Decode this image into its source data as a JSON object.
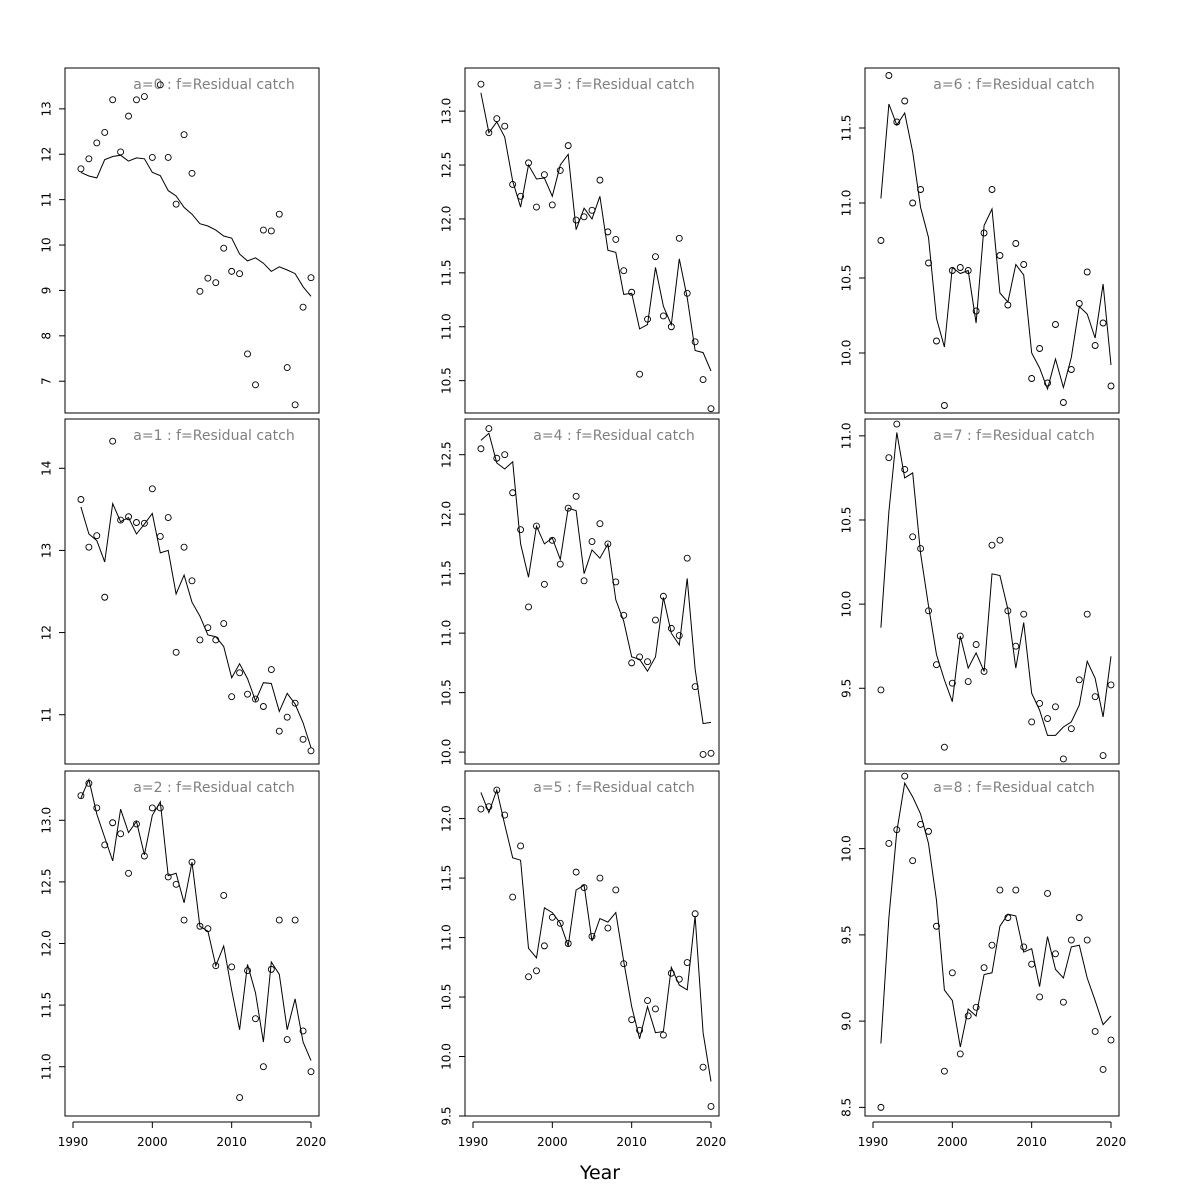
{
  "figure": {
    "xlabel": "Year"
  },
  "chart_data": [
    {
      "type": "scatter",
      "title": "a=0  :  f=Residual catch",
      "x": [
        1991,
        1992,
        1993,
        1994,
        1995,
        1996,
        1997,
        1998,
        1999,
        2000,
        2001,
        2002,
        2003,
        2004,
        2005,
        2006,
        2007,
        2008,
        2009,
        2010,
        2011,
        2012,
        2013,
        2014,
        2015,
        2016,
        2017,
        2018,
        2019,
        2020
      ],
      "observed": [
        11.68,
        11.9,
        12.25,
        12.48,
        13.2,
        12.05,
        12.84,
        13.2,
        13.27,
        11.93,
        13.53,
        11.93,
        10.9,
        12.43,
        11.58,
        8.98,
        9.27,
        9.17,
        9.93,
        9.42,
        9.37,
        7.6,
        6.92,
        10.33,
        10.31,
        10.68,
        7.3,
        6.48,
        8.63,
        9.28
      ],
      "fitted": [
        11.6,
        11.52,
        11.48,
        11.88,
        11.95,
        11.98,
        11.85,
        11.92,
        11.9,
        11.6,
        11.53,
        11.2,
        11.08,
        10.83,
        10.68,
        10.47,
        10.42,
        10.33,
        10.2,
        10.15,
        9.8,
        9.65,
        9.72,
        9.6,
        9.42,
        9.52,
        9.45,
        9.37,
        9.08,
        8.87
      ],
      "xlim": [
        1990,
        2020
      ],
      "ylim": [
        6.3,
        13.9
      ],
      "xticks": [
        1990,
        2000,
        2010,
        2020
      ],
      "yticks": [
        7,
        8,
        9,
        10,
        11,
        12,
        13
      ]
    },
    {
      "type": "scatter",
      "title": "a=1  :  f=Residual catch",
      "x": [
        1991,
        1992,
        1993,
        1994,
        1995,
        1996,
        1997,
        1998,
        1999,
        2000,
        2001,
        2002,
        2003,
        2004,
        2005,
        2006,
        2007,
        2008,
        2009,
        2010,
        2011,
        2012,
        2013,
        2014,
        2015,
        2016,
        2017,
        2018,
        2019,
        2020
      ],
      "observed": [
        13.62,
        13.04,
        13.18,
        12.43,
        14.33,
        13.37,
        13.41,
        13.34,
        13.33,
        13.75,
        13.17,
        13.4,
        11.76,
        13.04,
        12.63,
        11.91,
        12.06,
        11.91,
        12.11,
        11.22,
        11.51,
        11.25,
        11.19,
        11.1,
        11.55,
        10.8,
        10.97,
        11.14,
        10.7,
        10.56
      ],
      "fitted": [
        13.53,
        13.2,
        13.12,
        12.86,
        13.57,
        13.35,
        13.4,
        13.2,
        13.32,
        13.45,
        12.97,
        13.0,
        12.47,
        12.7,
        12.37,
        12.2,
        11.97,
        11.95,
        11.83,
        11.45,
        11.62,
        11.44,
        11.17,
        11.39,
        11.38,
        11.04,
        11.26,
        11.13,
        10.9,
        10.6
      ],
      "xlim": [
        1990,
        2020
      ],
      "ylim": [
        10.4,
        14.6
      ],
      "xticks": [
        1990,
        2000,
        2010,
        2020
      ],
      "yticks": [
        11,
        12,
        13,
        14
      ]
    },
    {
      "type": "scatter",
      "title": "a=2  :  f=Residual catch",
      "x": [
        1991,
        1992,
        1993,
        1994,
        1995,
        1996,
        1997,
        1998,
        1999,
        2000,
        2001,
        2002,
        2003,
        2004,
        2005,
        2006,
        2007,
        2008,
        2009,
        2010,
        2011,
        2012,
        2013,
        2014,
        2015,
        2016,
        2017,
        2018,
        2019,
        2020
      ],
      "observed": [
        13.2,
        13.3,
        13.1,
        12.8,
        12.98,
        12.89,
        12.57,
        12.97,
        12.71,
        13.1,
        13.1,
        12.54,
        12.48,
        12.19,
        12.66,
        12.14,
        12.12,
        11.82,
        12.39,
        11.81,
        10.75,
        11.78,
        11.39,
        11.0,
        11.79,
        12.19,
        11.22,
        12.19,
        11.29,
        10.96
      ],
      "fitted": [
        13.18,
        13.33,
        13.05,
        12.86,
        12.67,
        13.09,
        12.9,
        12.99,
        12.72,
        13.04,
        13.15,
        12.55,
        12.57,
        12.33,
        12.66,
        12.14,
        12.1,
        11.82,
        11.98,
        11.62,
        11.3,
        11.83,
        11.6,
        11.2,
        11.85,
        11.75,
        11.3,
        11.55,
        11.2,
        11.05
      ],
      "xlim": [
        1990,
        2020
      ],
      "ylim": [
        10.6,
        13.4
      ],
      "xticks": [
        1990,
        2000,
        2010,
        2020
      ],
      "yticks": [
        11.0,
        11.5,
        12.0,
        12.5,
        13.0
      ]
    },
    {
      "type": "scatter",
      "title": "a=3  :  f=Residual catch",
      "x": [
        1991,
        1992,
        1993,
        1994,
        1995,
        1996,
        1997,
        1998,
        1999,
        2000,
        2001,
        2002,
        2003,
        2004,
        2005,
        2006,
        2007,
        2008,
        2009,
        2010,
        2011,
        2012,
        2013,
        2014,
        2015,
        2016,
        2017,
        2018,
        2019,
        2020
      ],
      "observed": [
        13.25,
        12.8,
        12.93,
        12.86,
        12.32,
        12.21,
        12.52,
        12.11,
        12.41,
        12.13,
        12.45,
        12.68,
        11.99,
        12.02,
        12.08,
        12.36,
        11.88,
        11.81,
        11.52,
        11.32,
        10.56,
        11.07,
        11.65,
        11.1,
        11.0,
        11.82,
        11.31,
        10.86,
        10.51,
        10.24
      ],
      "fitted": [
        13.17,
        12.8,
        12.9,
        12.76,
        12.35,
        12.11,
        12.5,
        12.37,
        12.38,
        12.21,
        12.5,
        12.6,
        11.9,
        12.1,
        12.0,
        12.21,
        11.71,
        11.69,
        11.3,
        11.31,
        10.98,
        11.02,
        11.55,
        11.19,
        11.02,
        11.63,
        11.27,
        10.78,
        10.76,
        10.59
      ],
      "xlim": [
        1990,
        2020
      ],
      "ylim": [
        10.2,
        13.4
      ],
      "xticks": [
        1990,
        2000,
        2010,
        2020
      ],
      "yticks": [
        10.5,
        11.0,
        11.5,
        12.0,
        12.5,
        13.0
      ]
    },
    {
      "type": "scatter",
      "title": "a=4  :  f=Residual catch",
      "x": [
        1991,
        1992,
        1993,
        1994,
        1995,
        1996,
        1997,
        1998,
        1999,
        2000,
        2001,
        2002,
        2003,
        2004,
        2005,
        2006,
        2007,
        2008,
        2009,
        2010,
        2011,
        2012,
        2013,
        2014,
        2015,
        2016,
        2017,
        2018,
        2019,
        2020
      ],
      "observed": [
        12.55,
        12.72,
        12.47,
        12.5,
        12.18,
        11.87,
        11.22,
        11.9,
        11.41,
        11.78,
        11.58,
        12.05,
        12.15,
        11.44,
        11.77,
        11.92,
        11.75,
        11.43,
        11.15,
        10.75,
        10.8,
        10.76,
        11.11,
        11.31,
        11.04,
        10.98,
        11.63,
        10.55,
        9.98,
        9.99
      ],
      "fitted": [
        12.62,
        12.68,
        12.43,
        12.38,
        12.44,
        11.75,
        11.47,
        11.9,
        11.75,
        11.8,
        11.62,
        12.05,
        12.03,
        11.5,
        11.7,
        11.63,
        11.75,
        11.28,
        11.1,
        10.8,
        10.78,
        10.68,
        10.8,
        11.3,
        11.0,
        10.9,
        11.46,
        10.7,
        10.24,
        10.25
      ],
      "xlim": [
        1990,
        2020
      ],
      "ylim": [
        9.9,
        12.8
      ],
      "xticks": [
        1990,
        2000,
        2010,
        2020
      ],
      "yticks": [
        10.0,
        10.5,
        11.0,
        11.5,
        12.0,
        12.5
      ]
    },
    {
      "type": "scatter",
      "title": "a=5  :  f=Residual catch",
      "x": [
        1991,
        1992,
        1993,
        1994,
        1995,
        1996,
        1997,
        1998,
        1999,
        2000,
        2001,
        2002,
        2003,
        2004,
        2005,
        2006,
        2007,
        2008,
        2009,
        2010,
        2011,
        2012,
        2013,
        2014,
        2015,
        2016,
        2017,
        2018,
        2019,
        2020
      ],
      "observed": [
        12.08,
        12.1,
        12.24,
        12.03,
        11.34,
        11.77,
        10.67,
        10.72,
        10.93,
        11.17,
        11.12,
        10.95,
        11.55,
        11.42,
        11.01,
        11.5,
        11.08,
        11.4,
        10.78,
        10.31,
        10.22,
        10.47,
        10.4,
        10.18,
        10.7,
        10.65,
        10.79,
        11.2,
        9.91,
        9.58
      ],
      "fitted": [
        12.22,
        12.05,
        12.24,
        11.95,
        11.67,
        11.65,
        10.91,
        10.83,
        11.25,
        11.21,
        11.12,
        10.93,
        11.4,
        11.44,
        10.97,
        11.16,
        11.13,
        11.21,
        10.8,
        10.42,
        10.15,
        10.42,
        10.2,
        10.21,
        10.75,
        10.6,
        10.56,
        11.18,
        10.2,
        9.79
      ],
      "xlim": [
        1990,
        2020
      ],
      "ylim": [
        9.5,
        12.4
      ],
      "xticks": [
        1990,
        2000,
        2010,
        2020
      ],
      "yticks": [
        9.5,
        10.0,
        10.5,
        11.0,
        11.5,
        12.0
      ]
    },
    {
      "type": "scatter",
      "title": "a=6  :  f=Residual catch",
      "x": [
        1991,
        1992,
        1993,
        1994,
        1995,
        1996,
        1997,
        1998,
        1999,
        2000,
        2001,
        2002,
        2003,
        2004,
        2005,
        2006,
        2007,
        2008,
        2009,
        2010,
        2011,
        2012,
        2013,
        2014,
        2015,
        2016,
        2017,
        2018,
        2019,
        2020
      ],
      "observed": [
        10.75,
        11.85,
        11.54,
        11.68,
        11.0,
        11.09,
        10.6,
        10.08,
        9.65,
        10.55,
        10.57,
        10.55,
        10.28,
        10.8,
        11.09,
        10.65,
        10.32,
        10.73,
        10.59,
        9.83,
        10.03,
        9.8,
        10.19,
        9.67,
        9.89,
        10.33,
        10.54,
        10.05,
        10.2,
        9.78
      ],
      "fitted": [
        11.03,
        11.66,
        11.52,
        11.6,
        11.34,
        10.97,
        10.77,
        10.23,
        10.04,
        10.57,
        10.53,
        10.55,
        10.2,
        10.85,
        10.96,
        10.4,
        10.34,
        10.59,
        10.52,
        10.0,
        9.9,
        9.76,
        9.96,
        9.77,
        9.97,
        10.31,
        10.26,
        10.1,
        10.46,
        9.92
      ],
      "xlim": [
        1990,
        2020
      ],
      "ylim": [
        9.6,
        11.9
      ],
      "xticks": [
        1990,
        2000,
        2010,
        2020
      ],
      "yticks": [
        10.0,
        10.5,
        11.0,
        11.5
      ]
    },
    {
      "type": "scatter",
      "title": "a=7  :  f=Residual catch",
      "x": [
        1991,
        1992,
        1993,
        1994,
        1995,
        1996,
        1997,
        1998,
        1999,
        2000,
        2001,
        2002,
        2003,
        2004,
        2005,
        2006,
        2007,
        2008,
        2009,
        2010,
        2011,
        2012,
        2013,
        2014,
        2015,
        2016,
        2017,
        2018,
        2019,
        2020
      ],
      "observed": [
        9.49,
        10.87,
        11.07,
        10.8,
        10.4,
        10.33,
        9.96,
        9.64,
        9.15,
        9.53,
        9.81,
        9.54,
        9.76,
        9.6,
        10.35,
        10.38,
        9.96,
        9.75,
        9.94,
        9.3,
        9.41,
        9.32,
        9.39,
        9.08,
        9.26,
        9.55,
        9.94,
        9.45,
        9.1,
        9.52
      ],
      "fitted": [
        9.86,
        10.55,
        11.02,
        10.75,
        10.78,
        10.3,
        9.99,
        9.7,
        9.55,
        9.42,
        9.81,
        9.62,
        9.71,
        9.6,
        10.18,
        10.17,
        9.97,
        9.62,
        9.89,
        9.47,
        9.37,
        9.22,
        9.22,
        9.27,
        9.3,
        9.4,
        9.66,
        9.56,
        9.33,
        9.69
      ],
      "xlim": [
        1990,
        2020
      ],
      "ylim": [
        9.05,
        11.1
      ],
      "xticks": [
        1990,
        2000,
        2010,
        2020
      ],
      "yticks": [
        9.5,
        10.0,
        10.5,
        11.0
      ]
    },
    {
      "type": "scatter",
      "title": "a=8  :  f=Residual catch",
      "x": [
        1991,
        1992,
        1993,
        1994,
        1995,
        1996,
        1997,
        1998,
        1999,
        2000,
        2001,
        2002,
        2003,
        2004,
        2005,
        2006,
        2007,
        2008,
        2009,
        2010,
        2011,
        2012,
        2013,
        2014,
        2015,
        2016,
        2017,
        2018,
        2019,
        2020
      ],
      "observed": [
        8.5,
        10.03,
        10.11,
        10.42,
        9.93,
        10.14,
        10.1,
        9.55,
        8.71,
        9.28,
        8.81,
        9.03,
        9.08,
        9.31,
        9.44,
        9.76,
        9.6,
        9.76,
        9.43,
        9.33,
        9.14,
        9.74,
        9.39,
        9.11,
        9.47,
        9.6,
        9.47,
        8.94,
        8.72,
        8.89
      ],
      "fitted": [
        8.87,
        9.6,
        10.1,
        10.38,
        10.3,
        10.2,
        10.03,
        9.7,
        9.18,
        9.12,
        8.85,
        9.07,
        9.03,
        9.27,
        9.28,
        9.55,
        9.62,
        9.61,
        9.4,
        9.42,
        9.2,
        9.49,
        9.3,
        9.25,
        9.43,
        9.44,
        9.25,
        9.12,
        8.98,
        9.03
      ],
      "xlim": [
        1990,
        2020
      ],
      "ylim": [
        8.45,
        10.45
      ],
      "xticks": [
        1990,
        2000,
        2010,
        2020
      ],
      "yticks": [
        8.5,
        9.0,
        9.5,
        10.0
      ]
    }
  ]
}
